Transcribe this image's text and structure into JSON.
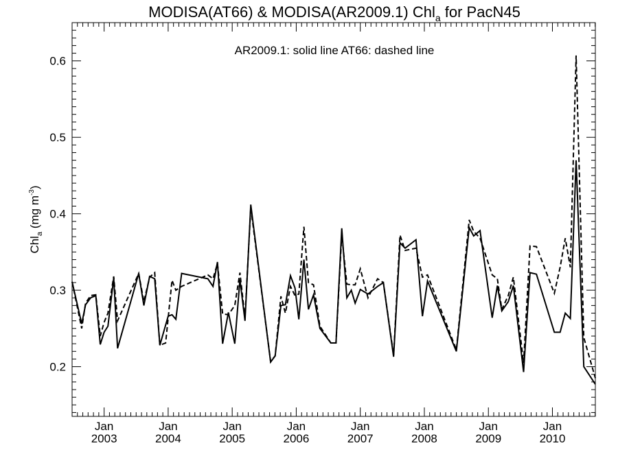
{
  "title": {
    "main": "MODISA(AT66) & MODISA(AR2009.1)  Chl",
    "subscript": "a",
    "suffix": " for PacN45"
  },
  "annotation": "AR2009.1: solid line   AT66: dashed line",
  "ylabel": {
    "main": "Chl",
    "subscript": "a",
    "unit": " (mg m",
    "superscript": "-3",
    "close": ")"
  },
  "chart_data": {
    "type": "line",
    "x_unit": "decimal year",
    "xlim": [
      2002.5,
      2010.67
    ],
    "ylim": [
      0.135,
      0.65
    ],
    "y_ticks": [
      0.2,
      0.3,
      0.4,
      0.5,
      0.6
    ],
    "y_tick_labels": [
      "0.2",
      "0.3",
      "0.4",
      "0.5",
      "0.6"
    ],
    "y_minor_step": 0.01,
    "x_ticks": [
      {
        "x": 2003.0,
        "month": "Jan",
        "year": "2003"
      },
      {
        "x": 2004.0,
        "month": "Jan",
        "year": "2004"
      },
      {
        "x": 2005.0,
        "month": "Jan",
        "year": "2005"
      },
      {
        "x": 2006.0,
        "month": "Jan",
        "year": "2006"
      },
      {
        "x": 2007.0,
        "month": "Jan",
        "year": "2007"
      },
      {
        "x": 2008.0,
        "month": "Jan",
        "year": "2008"
      },
      {
        "x": 2009.0,
        "month": "Jan",
        "year": "2009"
      },
      {
        "x": 2010.0,
        "month": "Jan",
        "year": "2010"
      }
    ],
    "grid": false,
    "series": [
      {
        "name": "AR2009.1",
        "style": "solid",
        "color": "#000000",
        "points": [
          [
            2002.5,
            0.311
          ],
          [
            2002.65,
            0.256
          ],
          [
            2002.71,
            0.281
          ],
          [
            2002.79,
            0.29
          ],
          [
            2002.87,
            0.293
          ],
          [
            2002.94,
            0.229
          ],
          [
            2003.0,
            0.245
          ],
          [
            2003.06,
            0.253
          ],
          [
            2003.15,
            0.316
          ],
          [
            2003.21,
            0.224
          ],
          [
            2003.54,
            0.322
          ],
          [
            2003.62,
            0.28
          ],
          [
            2003.71,
            0.318
          ],
          [
            2003.79,
            0.315
          ],
          [
            2003.87,
            0.228
          ],
          [
            2004.0,
            0.266
          ],
          [
            2004.06,
            0.268
          ],
          [
            2004.12,
            0.262
          ],
          [
            2004.21,
            0.322
          ],
          [
            2004.62,
            0.315
          ],
          [
            2004.7,
            0.305
          ],
          [
            2004.77,
            0.337
          ],
          [
            2004.85,
            0.23
          ],
          [
            2004.94,
            0.271
          ],
          [
            2005.04,
            0.23
          ],
          [
            2005.12,
            0.314
          ],
          [
            2005.2,
            0.26
          ],
          [
            2005.29,
            0.412
          ],
          [
            2005.6,
            0.206
          ],
          [
            2005.67,
            0.214
          ],
          [
            2005.76,
            0.28
          ],
          [
            2005.83,
            0.281
          ],
          [
            2005.91,
            0.319
          ],
          [
            2005.98,
            0.303
          ],
          [
            2006.04,
            0.262
          ],
          [
            2006.12,
            0.34
          ],
          [
            2006.19,
            0.275
          ],
          [
            2006.27,
            0.294
          ],
          [
            2006.37,
            0.25
          ],
          [
            2006.54,
            0.231
          ],
          [
            2006.62,
            0.231
          ],
          [
            2006.71,
            0.381
          ],
          [
            2006.79,
            0.29
          ],
          [
            2006.86,
            0.3
          ],
          [
            2006.92,
            0.283
          ],
          [
            2007.0,
            0.301
          ],
          [
            2007.12,
            0.295
          ],
          [
            2007.27,
            0.305
          ],
          [
            2007.36,
            0.31
          ],
          [
            2007.52,
            0.213
          ],
          [
            2007.62,
            0.362
          ],
          [
            2007.7,
            0.355
          ],
          [
            2007.87,
            0.366
          ],
          [
            2007.97,
            0.266
          ],
          [
            2008.05,
            0.312
          ],
          [
            2008.5,
            0.22
          ],
          [
            2008.7,
            0.382
          ],
          [
            2008.77,
            0.371
          ],
          [
            2008.87,
            0.378
          ],
          [
            2009.06,
            0.264
          ],
          [
            2009.14,
            0.306
          ],
          [
            2009.21,
            0.273
          ],
          [
            2009.31,
            0.285
          ],
          [
            2009.39,
            0.306
          ],
          [
            2009.55,
            0.193
          ],
          [
            2009.65,
            0.323
          ],
          [
            2009.75,
            0.321
          ],
          [
            2010.03,
            0.245
          ],
          [
            2010.12,
            0.245
          ],
          [
            2010.2,
            0.27
          ],
          [
            2010.28,
            0.263
          ],
          [
            2010.37,
            0.47
          ],
          [
            2010.49,
            0.2
          ],
          [
            2010.67,
            0.177
          ]
        ]
      },
      {
        "name": "AT66",
        "style": "dashed",
        "color": "#000000",
        "points": [
          [
            2002.5,
            0.311
          ],
          [
            2002.65,
            0.25
          ],
          [
            2002.71,
            0.283
          ],
          [
            2002.79,
            0.293
          ],
          [
            2002.87,
            0.294
          ],
          [
            2002.94,
            0.24
          ],
          [
            2003.0,
            0.258
          ],
          [
            2003.06,
            0.27
          ],
          [
            2003.15,
            0.318
          ],
          [
            2003.21,
            0.26
          ],
          [
            2003.54,
            0.322
          ],
          [
            2003.62,
            0.285
          ],
          [
            2003.71,
            0.317
          ],
          [
            2003.79,
            0.323
          ],
          [
            2003.87,
            0.228
          ],
          [
            2003.96,
            0.231
          ],
          [
            2004.06,
            0.313
          ],
          [
            2004.12,
            0.3
          ],
          [
            2004.21,
            0.305
          ],
          [
            2004.62,
            0.32
          ],
          [
            2004.7,
            0.315
          ],
          [
            2004.77,
            0.335
          ],
          [
            2004.85,
            0.269
          ],
          [
            2004.94,
            0.268
          ],
          [
            2005.04,
            0.28
          ],
          [
            2005.12,
            0.323
          ],
          [
            2005.2,
            0.264
          ],
          [
            2005.29,
            0.408
          ],
          [
            2005.6,
            0.207
          ],
          [
            2005.67,
            0.214
          ],
          [
            2005.76,
            0.292
          ],
          [
            2005.83,
            0.27
          ],
          [
            2005.91,
            0.305
          ],
          [
            2005.98,
            0.293
          ],
          [
            2006.04,
            0.295
          ],
          [
            2006.12,
            0.383
          ],
          [
            2006.19,
            0.31
          ],
          [
            2006.27,
            0.307
          ],
          [
            2006.37,
            0.253
          ],
          [
            2006.54,
            0.231
          ],
          [
            2006.62,
            0.231
          ],
          [
            2006.71,
            0.373
          ],
          [
            2006.79,
            0.308
          ],
          [
            2006.86,
            0.307
          ],
          [
            2006.92,
            0.307
          ],
          [
            2007.0,
            0.328
          ],
          [
            2007.12,
            0.29
          ],
          [
            2007.27,
            0.315
          ],
          [
            2007.36,
            0.31
          ],
          [
            2007.52,
            0.215
          ],
          [
            2007.62,
            0.372
          ],
          [
            2007.7,
            0.352
          ],
          [
            2007.87,
            0.355
          ],
          [
            2007.97,
            0.317
          ],
          [
            2008.05,
            0.32
          ],
          [
            2008.5,
            0.222
          ],
          [
            2008.7,
            0.392
          ],
          [
            2008.77,
            0.377
          ],
          [
            2008.87,
            0.368
          ],
          [
            2009.06,
            0.32
          ],
          [
            2009.14,
            0.315
          ],
          [
            2009.21,
            0.275
          ],
          [
            2009.31,
            0.293
          ],
          [
            2009.39,
            0.317
          ],
          [
            2009.55,
            0.205
          ],
          [
            2009.65,
            0.358
          ],
          [
            2009.75,
            0.357
          ],
          [
            2010.03,
            0.296
          ],
          [
            2010.12,
            0.33
          ],
          [
            2010.2,
            0.368
          ],
          [
            2010.28,
            0.33
          ],
          [
            2010.37,
            0.607
          ],
          [
            2010.49,
            0.238
          ],
          [
            2010.67,
            0.185
          ]
        ]
      }
    ]
  }
}
